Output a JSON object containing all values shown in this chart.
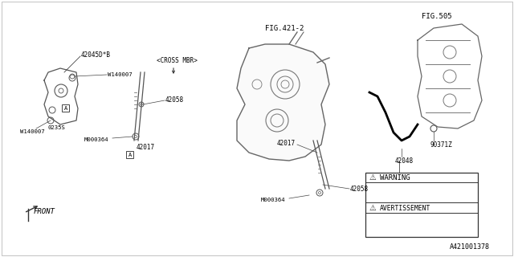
{
  "title": "",
  "bg_color": "#ffffff",
  "line_color": "#000000",
  "fig_width": 6.4,
  "fig_height": 3.2,
  "dpi": 100,
  "labels": {
    "fig421": "FIG.421-2",
    "fig505": "FIG.505",
    "cross_mbr": "<CROSS MBR>",
    "front": "FRONT",
    "part_42045": "42045D*B",
    "part_w140007_1": "W140007",
    "part_w140007_2": "W140007",
    "part_0235s": "0235S",
    "part_m000364_1": "M000364",
    "part_42017_1": "42017",
    "part_42058_1": "42058",
    "part_42017_2": "42017",
    "part_42058_2": "42058",
    "part_m000364_2": "M000364",
    "part_42048": "42048",
    "part_90371z": "90371Z",
    "warning": "WARNING",
    "avertissement": "AVERTISSEMENT",
    "doc_num": "A421001378"
  },
  "colors": {
    "thin_line": "#888888",
    "part_line": "#555555",
    "border": "#000000",
    "text": "#000000",
    "background": "#ffffff"
  }
}
